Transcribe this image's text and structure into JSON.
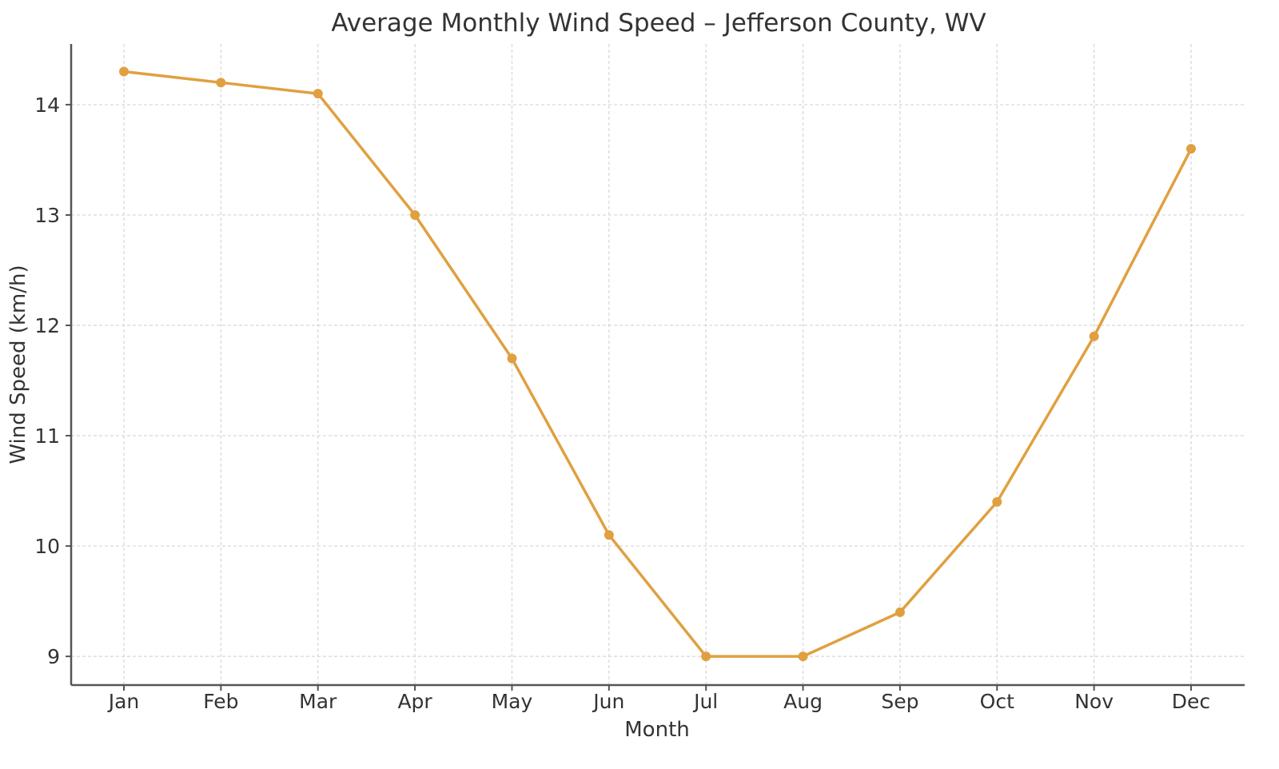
{
  "chart_data": {
    "type": "line",
    "title": "Average Monthly Wind Speed – Jefferson County, WV",
    "xlabel": "Month",
    "ylabel": "Wind Speed (km/h)",
    "categories": [
      "Jan",
      "Feb",
      "Mar",
      "Apr",
      "May",
      "Jun",
      "Jul",
      "Aug",
      "Sep",
      "Oct",
      "Nov",
      "Dec"
    ],
    "series": [
      {
        "values": [
          14.3,
          14.2,
          14.1,
          13.0,
          11.7,
          10.1,
          9.0,
          9.0,
          9.4,
          10.4,
          11.9,
          13.6
        ],
        "color": "#e0a040",
        "marker": "circle"
      }
    ],
    "ylim": [
      8.74,
      14.55
    ],
    "yticks": [
      9,
      10,
      11,
      12,
      13,
      14
    ],
    "grid": true,
    "legend": "none"
  }
}
